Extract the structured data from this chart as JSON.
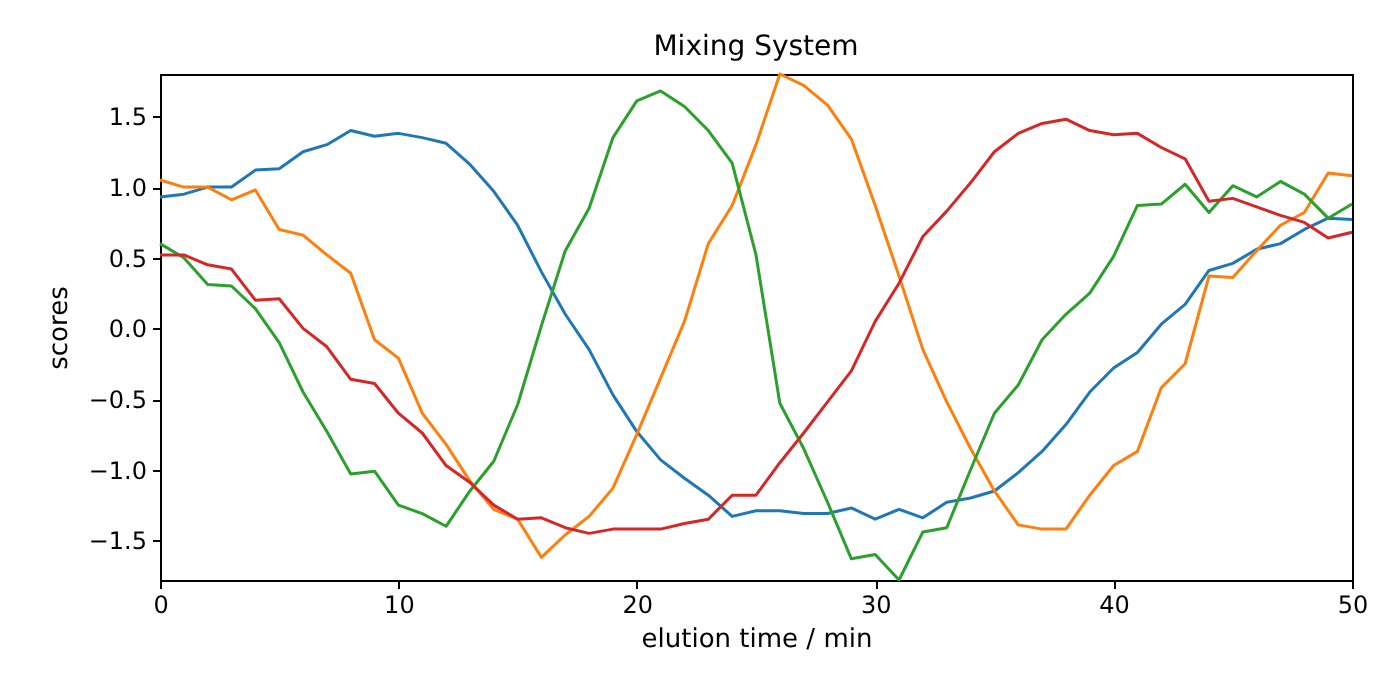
{
  "chart_data": {
    "type": "line",
    "title": "Mixing System",
    "xlabel": "elution time / min",
    "ylabel": "scores",
    "x": [
      0,
      1,
      2,
      3,
      4,
      5,
      6,
      7,
      8,
      9,
      10,
      11,
      12,
      13,
      14,
      15,
      16,
      17,
      18,
      19,
      20,
      21,
      22,
      23,
      24,
      25,
      26,
      27,
      28,
      29,
      30,
      31,
      32,
      33,
      34,
      35,
      36,
      37,
      38,
      39,
      40,
      41,
      42,
      43,
      44,
      45,
      46,
      47,
      48,
      49,
      50
    ],
    "xlim": [
      0,
      50
    ],
    "xticks": [
      0,
      10,
      20,
      30,
      40,
      50
    ],
    "ylim": [
      -1.78,
      1.8
    ],
    "yticks": [
      {
        "value": -1.5,
        "label": "−1.5"
      },
      {
        "value": -1,
        "label": "−1.0"
      },
      {
        "value": -0.5,
        "label": "−0.5"
      },
      {
        "value": 0,
        "label": "0.0"
      },
      {
        "value": 0.5,
        "label": "0.5"
      },
      {
        "value": 1,
        "label": "1.0"
      },
      {
        "value": 1.5,
        "label": "1.5"
      }
    ],
    "grid": false,
    "line_style": "solid",
    "marker": "none",
    "series": [
      {
        "color": "#1f77b4",
        "values": [
          0.93,
          0.95,
          1.0,
          1.0,
          1.12,
          1.13,
          1.25,
          1.3,
          1.4,
          1.36,
          1.38,
          1.35,
          1.31,
          1.16,
          0.97,
          0.73,
          0.4,
          0.1,
          -0.15,
          -0.47,
          -0.73,
          -0.93,
          -1.06,
          -1.18,
          -1.33,
          -1.29,
          -1.29,
          -1.31,
          -1.31,
          -1.27,
          -1.35,
          -1.28,
          -1.34,
          -1.23,
          -1.2,
          -1.15,
          -1.02,
          -0.87,
          -0.68,
          -0.45,
          -0.28,
          -0.17,
          0.03,
          0.17,
          0.41,
          0.46,
          0.56,
          0.6,
          0.7,
          0.78,
          0.77
        ]
      },
      {
        "color": "#ff7f0e",
        "values": [
          1.05,
          1.0,
          1.0,
          0.91,
          0.98,
          0.7,
          0.66,
          0.52,
          0.39,
          -0.08,
          -0.21,
          -0.6,
          -0.82,
          -1.08,
          -1.28,
          -1.35,
          -1.62,
          -1.46,
          -1.33,
          -1.13,
          -0.75,
          -0.35,
          0.05,
          0.6,
          0.87,
          1.3,
          1.8,
          1.72,
          1.58,
          1.34,
          0.87,
          0.37,
          -0.15,
          -0.52,
          -0.85,
          -1.15,
          -1.39,
          -1.42,
          -1.42,
          -1.18,
          -0.97,
          -0.87,
          -0.42,
          -0.25,
          0.37,
          0.36,
          0.55,
          0.73,
          0.82,
          1.1,
          1.08
        ]
      },
      {
        "color": "#2ca02c",
        "values": [
          0.6,
          0.5,
          0.31,
          0.3,
          0.14,
          -0.1,
          -0.45,
          -0.73,
          -1.03,
          -1.01,
          -1.25,
          -1.31,
          -1.4,
          -1.15,
          -0.94,
          -0.54,
          0.02,
          0.55,
          0.85,
          1.35,
          1.61,
          1.68,
          1.57,
          1.4,
          1.17,
          0.52,
          -0.53,
          -0.85,
          -1.23,
          -1.63,
          -1.6,
          -1.78,
          -1.44,
          -1.41,
          -1.0,
          -0.6,
          -0.4,
          -0.08,
          0.1,
          0.25,
          0.51,
          0.87,
          0.88,
          1.02,
          0.82,
          1.01,
          0.93,
          1.04,
          0.95,
          0.78,
          0.88
        ]
      },
      {
        "color": "#d62728",
        "values": [
          0.52,
          0.52,
          0.45,
          0.42,
          0.2,
          0.21,
          0.0,
          -0.13,
          -0.36,
          -0.39,
          -0.6,
          -0.74,
          -0.97,
          -1.09,
          -1.25,
          -1.35,
          -1.34,
          -1.41,
          -1.45,
          -1.42,
          -1.42,
          -1.42,
          -1.38,
          -1.35,
          -1.18,
          -1.18,
          -0.95,
          -0.74,
          -0.52,
          -0.3,
          0.05,
          0.32,
          0.65,
          0.83,
          1.03,
          1.25,
          1.38,
          1.45,
          1.48,
          1.4,
          1.37,
          1.38,
          1.28,
          1.2,
          0.9,
          0.92,
          0.86,
          0.8,
          0.75,
          0.64,
          0.68
        ]
      }
    ]
  }
}
